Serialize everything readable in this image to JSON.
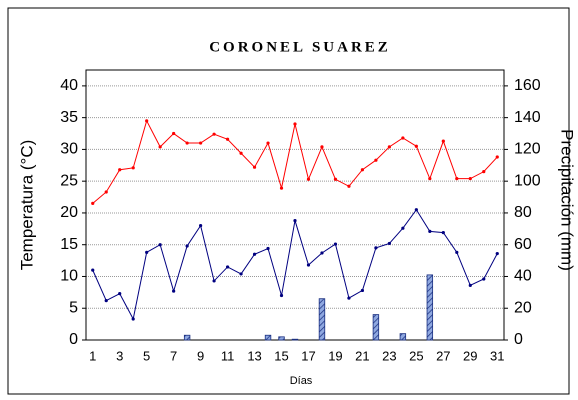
{
  "chart_data": {
    "type": "line",
    "title": "CORONEL SUAREZ",
    "xlabel": "Días",
    "ylabel": "Temperatura (°C)",
    "y2label": "Precipitación (mm)",
    "categories": [
      "1",
      null,
      "3",
      null,
      "5",
      null,
      "7",
      null,
      "9",
      null,
      "11",
      null,
      "13",
      null,
      "15",
      null,
      "17",
      null,
      "19",
      null,
      "21",
      null,
      "23",
      null,
      "25",
      null,
      "27",
      null,
      "29",
      null,
      "31"
    ],
    "series": [
      {
        "color": "#ff0000",
        "values": [
          21.5,
          23.3,
          26.8,
          27.1,
          34.5,
          30.4,
          32.5,
          31.0,
          31.0,
          32.4,
          31.6,
          29.4,
          27.2,
          31.0,
          23.9,
          34.0,
          25.3,
          30.4,
          25.3,
          24.2,
          26.8,
          28.3,
          30.4,
          31.8,
          30.5,
          25.4,
          31.3,
          25.4,
          25.4,
          26.5,
          28.8
        ]
      },
      {
        "color": "#000080",
        "values": [
          11.0,
          6.2,
          7.3,
          3.3,
          13.8,
          15.0,
          7.7,
          14.8,
          18.0,
          9.3,
          11.5,
          10.4,
          13.5,
          14.4,
          7.0,
          18.8,
          11.8,
          13.7,
          15.1,
          6.6,
          7.8,
          14.5,
          15.2,
          17.6,
          20.5,
          17.1,
          16.9,
          13.8,
          8.6,
          9.6,
          13.6
        ]
      },
      {
        "color": "#6f8fd0",
        "type": "bar",
        "axis": "y2",
        "values": [
          0,
          0,
          0,
          0,
          0,
          0,
          0,
          3,
          0,
          0,
          0,
          0,
          0,
          3,
          2,
          0.5,
          0,
          26,
          0,
          0,
          0,
          16,
          0,
          4,
          0,
          41,
          0,
          0,
          0,
          0,
          0
        ]
      }
    ],
    "ylim": [
      0,
      42.5
    ],
    "yticks": [
      0,
      5,
      10,
      15,
      20,
      25,
      30,
      35,
      40
    ],
    "y2lim": [
      0,
      170
    ],
    "y2ticks": [
      0,
      20,
      40,
      60,
      80,
      100,
      120,
      140,
      160
    ],
    "grid": true
  }
}
